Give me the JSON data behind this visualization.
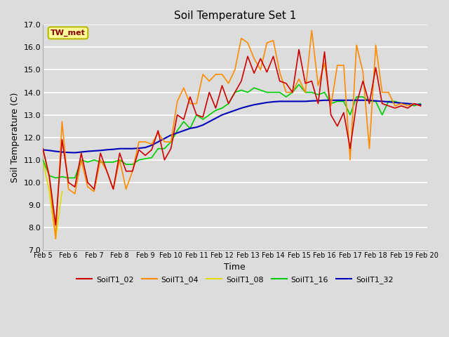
{
  "title": "Soil Temperature Set 1",
  "xlabel": "Time",
  "ylabel": "Soil Temperature (C)",
  "ylim": [
    7.0,
    17.0
  ],
  "yticks": [
    7.0,
    8.0,
    9.0,
    10.0,
    11.0,
    12.0,
    13.0,
    14.0,
    15.0,
    16.0,
    17.0
  ],
  "xtick_labels": [
    "Feb 5",
    "Feb 6",
    "Feb 7",
    "Feb 8",
    "Feb 9",
    "Feb 10",
    "Feb 11",
    "Feb 12",
    "Feb 13",
    "Feb 14",
    "Feb 15",
    "Feb 16",
    "Feb 17",
    "Feb 18",
    "Feb 19",
    "Feb 20"
  ],
  "annotation": "TW_met",
  "annotation_color": "#8B0000",
  "annotation_bg": "#FFFF99",
  "annotation_edge": "#B8B800",
  "fig_bg": "#DCDCDC",
  "plot_bg": "#DCDCDC",
  "grid_color": "#FFFFFF",
  "series": {
    "SoilT1_02": {
      "color": "#CC0000",
      "lw": 1.2,
      "x": [
        0,
        0.5,
        1,
        1.5,
        2,
        2.5,
        3,
        3.5,
        4,
        4.5,
        5,
        5.5,
        6,
        6.5,
        7,
        7.5,
        8,
        8.5,
        9,
        9.5,
        10,
        10.5,
        11,
        11.5,
        12,
        12.5,
        13,
        13.5,
        14,
        14.5,
        15,
        15.5,
        16,
        16.5,
        17,
        17.5,
        18,
        18.5,
        19,
        19.5,
        20,
        20.5,
        21,
        21.5,
        22,
        22.5,
        23,
        23.5,
        24,
        24.5,
        25,
        25.5,
        26,
        26.5,
        27,
        27.5,
        28,
        28.5,
        29,
        29.5
      ],
      "y": [
        11.5,
        10.3,
        8.1,
        11.9,
        10.0,
        9.8,
        11.3,
        10.0,
        9.7,
        11.3,
        10.5,
        9.7,
        11.3,
        10.5,
        10.5,
        11.45,
        11.2,
        11.45,
        12.3,
        11.0,
        11.5,
        13.0,
        12.8,
        13.8,
        13.0,
        12.9,
        14.0,
        13.3,
        14.3,
        13.5,
        14.0,
        14.5,
        15.6,
        14.85,
        15.5,
        14.9,
        15.6,
        14.5,
        14.4,
        14.0,
        15.9,
        14.4,
        14.5,
        13.5,
        15.8,
        13.0,
        12.5,
        13.1,
        11.5,
        13.5,
        14.5,
        13.5,
        15.1,
        13.5,
        13.4,
        13.3,
        13.4,
        13.3,
        13.5,
        13.4
      ]
    },
    "SoilT1_04": {
      "color": "#FF8C00",
      "lw": 1.2,
      "x": [
        0,
        0.5,
        1,
        1.5,
        2,
        2.5,
        3,
        3.5,
        4,
        4.5,
        5,
        5.5,
        6,
        6.5,
        7,
        7.5,
        8,
        8.5,
        9,
        9.5,
        10,
        10.5,
        11,
        11.5,
        12,
        12.5,
        13,
        13.5,
        14,
        14.5,
        15,
        15.5,
        16,
        16.5,
        17,
        17.5,
        18,
        18.5,
        19,
        19.5,
        20,
        20.5,
        21,
        21.5,
        22,
        22.5,
        23,
        23.5,
        24,
        24.5,
        25,
        25.5,
        26,
        26.5,
        27,
        27.5,
        28,
        28.5,
        29,
        29.5
      ],
      "y": [
        11.5,
        10.2,
        7.5,
        12.7,
        9.7,
        9.5,
        11.0,
        9.8,
        9.6,
        11.0,
        10.5,
        9.7,
        11.0,
        9.7,
        10.5,
        11.8,
        11.8,
        11.7,
        12.2,
        11.8,
        11.8,
        13.6,
        14.2,
        13.5,
        13.5,
        14.8,
        14.5,
        14.8,
        14.8,
        14.4,
        15.0,
        16.4,
        16.2,
        15.5,
        15.0,
        16.2,
        16.3,
        14.9,
        14.0,
        14.0,
        14.6,
        14.0,
        16.75,
        14.3,
        15.3,
        13.4,
        15.2,
        15.2,
        11.0,
        16.1,
        14.9,
        11.5,
        16.1,
        14.0,
        14.0,
        13.4,
        13.5,
        13.4,
        13.5,
        13.4
      ]
    },
    "SoilT1_08": {
      "color": "#DDDD00",
      "lw": 1.2,
      "x": [
        0,
        0.5,
        1,
        1.5
      ],
      "y": [
        11.0,
        9.6,
        7.5,
        9.6
      ]
    },
    "SoilT1_16": {
      "color": "#00CC00",
      "lw": 1.2,
      "x": [
        0,
        0.5,
        1,
        1.5,
        2,
        2.5,
        3,
        3.5,
        4,
        4.5,
        5,
        5.5,
        6,
        6.5,
        7,
        7.5,
        8,
        8.5,
        9,
        9.5,
        10,
        10.5,
        11,
        11.5,
        12,
        12.5,
        13,
        13.5,
        14,
        14.5,
        15,
        15.5,
        16,
        16.5,
        17,
        17.5,
        18,
        18.5,
        19,
        19.5,
        20,
        20.5,
        21,
        21.5,
        22,
        22.5,
        23,
        23.5,
        24,
        24.5,
        25,
        25.5,
        26,
        26.5,
        27,
        27.5,
        28,
        28.5,
        29,
        29.5
      ],
      "y": [
        11.0,
        10.3,
        10.2,
        10.25,
        10.2,
        10.2,
        11.0,
        10.9,
        11.0,
        10.9,
        10.9,
        10.9,
        11.0,
        10.8,
        10.8,
        11.0,
        11.05,
        11.1,
        11.5,
        11.5,
        11.8,
        12.3,
        12.7,
        12.4,
        13.0,
        12.8,
        13.0,
        13.2,
        13.3,
        13.5,
        14.0,
        14.1,
        14.0,
        14.2,
        14.1,
        14.0,
        14.0,
        14.0,
        13.8,
        14.0,
        14.35,
        14.0,
        14.0,
        13.9,
        14.0,
        13.5,
        13.6,
        13.6,
        13.0,
        13.8,
        13.8,
        13.6,
        13.6,
        13.0,
        13.6,
        13.6,
        13.5,
        13.5,
        13.4,
        13.5
      ]
    },
    "SoilT1_32": {
      "color": "#0000BB",
      "lw": 1.5,
      "x": [
        0,
        0.5,
        1,
        1.5,
        2,
        2.5,
        3,
        3.5,
        4,
        4.5,
        5,
        5.5,
        6,
        6.5,
        7,
        7.5,
        8,
        8.5,
        9,
        9.5,
        10,
        10.5,
        11,
        11.5,
        12,
        12.5,
        13,
        13.5,
        14,
        14.5,
        15,
        15.5,
        16,
        16.5,
        17,
        17.5,
        18,
        18.5,
        19,
        19.5,
        20,
        20.5,
        21,
        21.5,
        22,
        22.5,
        23,
        23.5,
        24,
        24.5,
        25,
        25.5,
        26,
        26.5,
        27,
        27.5,
        28,
        28.5,
        29,
        29.5
      ],
      "y": [
        11.45,
        11.42,
        11.38,
        11.35,
        11.33,
        11.32,
        11.35,
        11.38,
        11.4,
        11.42,
        11.45,
        11.47,
        11.5,
        11.5,
        11.5,
        11.52,
        11.55,
        11.65,
        11.8,
        11.95,
        12.1,
        12.2,
        12.3,
        12.4,
        12.45,
        12.55,
        12.7,
        12.85,
        13.0,
        13.1,
        13.2,
        13.3,
        13.38,
        13.45,
        13.5,
        13.55,
        13.58,
        13.6,
        13.6,
        13.6,
        13.6,
        13.6,
        13.62,
        13.63,
        13.65,
        13.65,
        13.65,
        13.65,
        13.65,
        13.65,
        13.65,
        13.65,
        13.62,
        13.6,
        13.58,
        13.55,
        13.52,
        13.5,
        13.48,
        13.45
      ]
    }
  },
  "legend_entries": [
    "SoilT1_02",
    "SoilT1_04",
    "SoilT1_08",
    "SoilT1_16",
    "SoilT1_32"
  ],
  "legend_colors": [
    "#CC0000",
    "#FF8C00",
    "#DDDD00",
    "#00CC00",
    "#0000BB"
  ]
}
